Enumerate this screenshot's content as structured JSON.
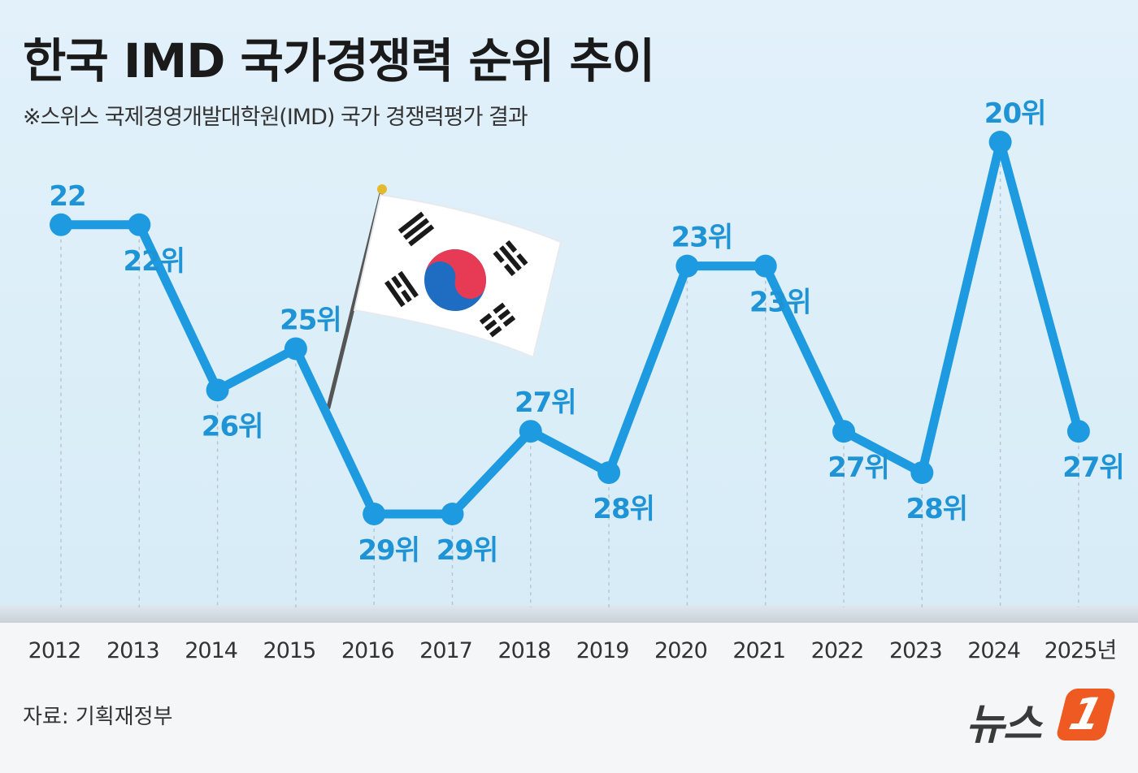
{
  "title": "한국 IMD 국가경쟁력 순위 추이",
  "subtitle": "※스위스 국제경영개발대학원(IMD) 국가 경쟁력평가 결과",
  "source": "자료: 기획재정부",
  "logo": {
    "text": "뉴스",
    "mark": "1"
  },
  "colors": {
    "line": "#1e9be0",
    "label": "#1e94d6",
    "background": "#e1f0f9"
  },
  "chart_data": {
    "type": "line",
    "x": [
      "2012",
      "2013",
      "2014",
      "2015",
      "2016",
      "2017",
      "2018",
      "2019",
      "2020",
      "2021",
      "2022",
      "2023",
      "2024",
      "2025년"
    ],
    "values": [
      22,
      22,
      26,
      25,
      29,
      29,
      27,
      28,
      23,
      23,
      27,
      28,
      20,
      27
    ],
    "data_labels": [
      "22",
      "22위",
      "26위",
      "25위",
      "29위",
      "29위",
      "27위",
      "28위",
      "23위",
      "23위",
      "27위",
      "28위",
      "20위",
      "27위"
    ],
    "y_inverted": true,
    "ylim": [
      20,
      29
    ],
    "grid": "vertical dashed",
    "legend": "none",
    "decoration": "korean-flag"
  }
}
